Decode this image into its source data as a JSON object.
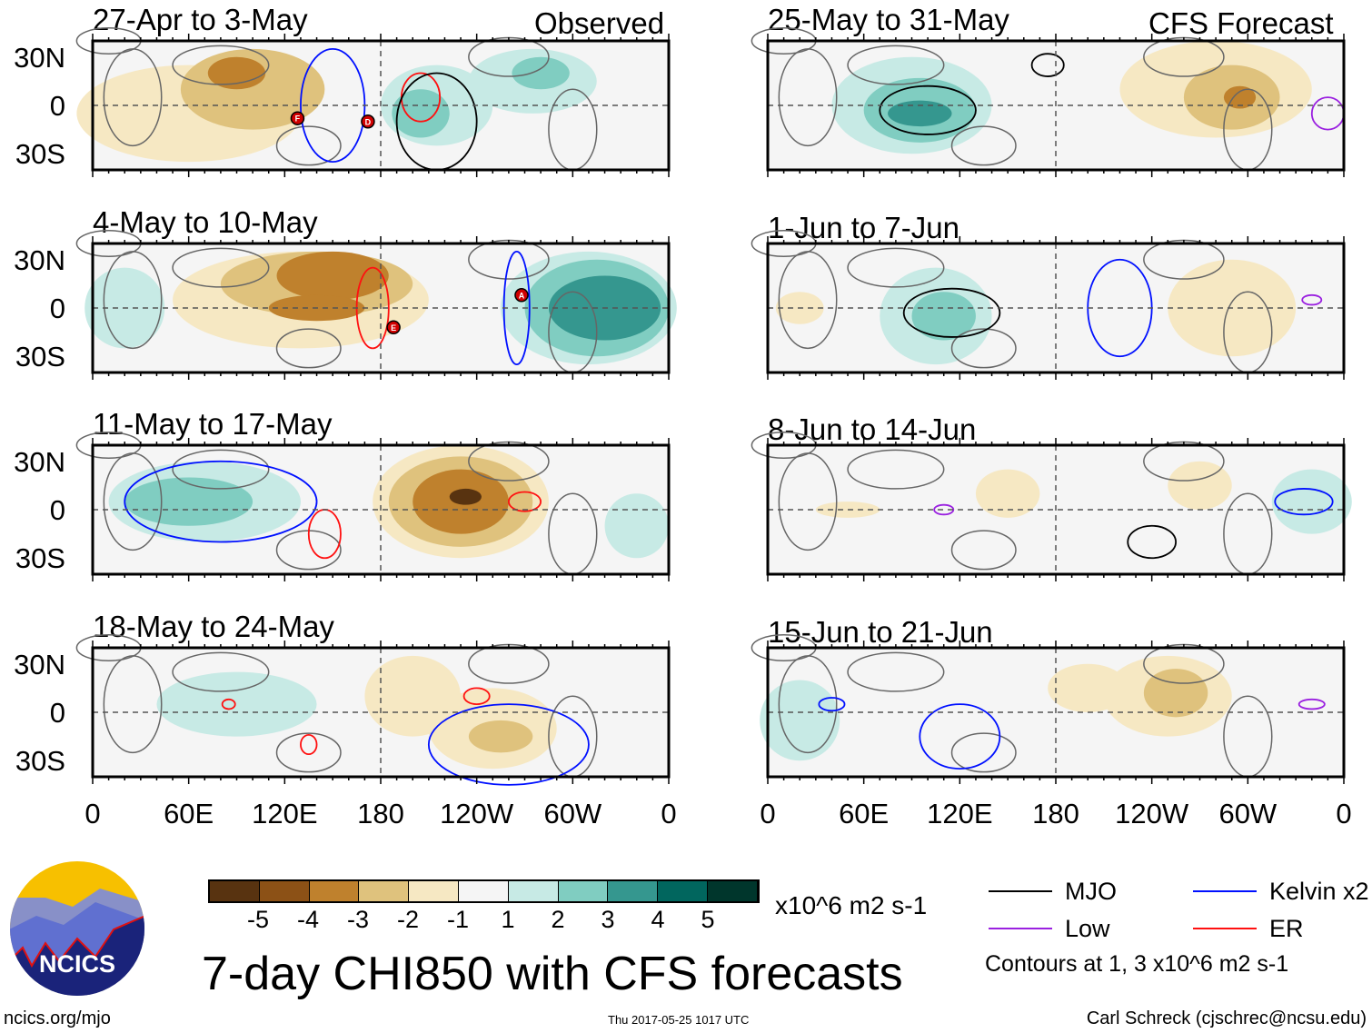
{
  "header": {
    "observed_label": "Observed",
    "forecast_label": "CFS Forecast"
  },
  "y_ticks": [
    "30N",
    "0",
    "30S"
  ],
  "x_ticks": [
    "0",
    "60E",
    "120E",
    "180",
    "120W",
    "60W",
    "0"
  ],
  "chart_data": {
    "type": "heatmap",
    "title": "7-day CHI850 with CFS forecasts",
    "units": "x10^6 m2 s-1",
    "lon_range": [
      0,
      360
    ],
    "lat_range": [
      -40,
      40
    ],
    "colorbar": {
      "ticks": [
        "-5",
        "-4",
        "-3",
        "-2",
        "-1",
        "1",
        "2",
        "3",
        "4",
        "5"
      ],
      "colors": [
        "#583310",
        "#8c5116",
        "#bf812d",
        "#dfc27d",
        "#f6e8c3",
        "#f5f5f5",
        "#c7eae5",
        "#80cdc1",
        "#35978f",
        "#01665e",
        "#00362c"
      ]
    },
    "legend": [
      {
        "label": "MJO",
        "color": "#000000"
      },
      {
        "label": "Kelvin x2",
        "color": "#0010ff"
      },
      {
        "label": "Low",
        "color": "#9a20e0"
      },
      {
        "label": "ER",
        "color": "#ff1010"
      }
    ],
    "contour_note": "Contours at 1, 3 x10^6 m2 s-1",
    "panels": [
      {
        "title": "27-Apr to 3-May",
        "col": 0,
        "row": 0,
        "regions": [
          [
            60,
            -5,
            70,
            30,
            -1
          ],
          [
            100,
            10,
            45,
            25,
            -2
          ],
          [
            90,
            20,
            18,
            10,
            -3
          ],
          [
            215,
            0,
            35,
            25,
            1
          ],
          [
            205,
            -5,
            18,
            15,
            2
          ],
          [
            275,
            15,
            40,
            20,
            1
          ],
          [
            280,
            20,
            18,
            10,
            2
          ]
        ],
        "contours": [
          [
            205,
            5,
            12,
            15,
            "#ff1010"
          ],
          [
            215,
            -10,
            25,
            30,
            "#000000"
          ],
          [
            150,
            0,
            20,
            35,
            "#0010ff"
          ]
        ],
        "storms": [
          [
            128,
            -8,
            "F"
          ],
          [
            172,
            -10,
            "D"
          ]
        ]
      },
      {
        "title": "4-May to 10-May",
        "col": 0,
        "row": 1,
        "regions": [
          [
            130,
            5,
            80,
            30,
            -1
          ],
          [
            140,
            15,
            60,
            20,
            -2
          ],
          [
            150,
            20,
            35,
            15,
            -3
          ],
          [
            140,
            0,
            30,
            8,
            -3
          ],
          [
            310,
            0,
            55,
            35,
            1
          ],
          [
            315,
            0,
            45,
            30,
            2
          ],
          [
            320,
            0,
            35,
            20,
            3
          ],
          [
            20,
            0,
            25,
            25,
            1
          ]
        ],
        "contours": [
          [
            175,
            0,
            10,
            25,
            "#ff1010"
          ],
          [
            265,
            0,
            8,
            35,
            "#0010ff"
          ]
        ],
        "storms": [
          [
            268,
            8,
            "A"
          ],
          [
            188,
            -12,
            "E"
          ]
        ]
      },
      {
        "title": "11-May to 17-May",
        "col": 0,
        "row": 2,
        "regions": [
          [
            70,
            5,
            60,
            25,
            1
          ],
          [
            60,
            5,
            40,
            15,
            2
          ],
          [
            230,
            5,
            55,
            35,
            -1
          ],
          [
            230,
            5,
            45,
            28,
            -2
          ],
          [
            230,
            5,
            30,
            20,
            -3
          ],
          [
            233,
            8,
            10,
            5,
            -5
          ],
          [
            340,
            -10,
            20,
            20,
            1
          ]
        ],
        "contours": [
          [
            145,
            -15,
            10,
            15,
            "#ff1010"
          ],
          [
            270,
            5,
            10,
            6,
            "#ff1010"
          ],
          [
            80,
            5,
            60,
            25,
            "#0010ff"
          ]
        ],
        "storms": []
      },
      {
        "title": "18-May to 24-May",
        "col": 0,
        "row": 3,
        "regions": [
          [
            90,
            5,
            50,
            20,
            1
          ],
          [
            200,
            10,
            30,
            25,
            -1
          ],
          [
            250,
            -10,
            40,
            25,
            -1
          ],
          [
            255,
            -15,
            20,
            10,
            -2
          ]
        ],
        "contours": [
          [
            85,
            5,
            4,
            3,
            "#ff1010"
          ],
          [
            135,
            -20,
            5,
            6,
            "#ff1010"
          ],
          [
            240,
            10,
            8,
            5,
            "#ff1010"
          ],
          [
            260,
            -20,
            50,
            25,
            "#0010ff"
          ]
        ],
        "storms": []
      },
      {
        "title": "25-May to 31-May",
        "col": 1,
        "row": 0,
        "regions": [
          [
            90,
            0,
            50,
            30,
            1
          ],
          [
            95,
            -3,
            35,
            20,
            2
          ],
          [
            95,
            -5,
            20,
            8,
            3
          ],
          [
            280,
            10,
            60,
            30,
            -1
          ],
          [
            290,
            5,
            30,
            20,
            -2
          ],
          [
            295,
            5,
            10,
            7,
            -3
          ]
        ],
        "contours": [
          [
            100,
            -3,
            30,
            15,
            "#000000"
          ],
          [
            175,
            25,
            10,
            7,
            "#000000"
          ],
          [
            350,
            -5,
            10,
            10,
            "#9a20e0"
          ]
        ],
        "storms": []
      },
      {
        "title": "1-Jun to 7-Jun",
        "col": 1,
        "row": 1,
        "regions": [
          [
            105,
            -5,
            35,
            30,
            1
          ],
          [
            110,
            -5,
            20,
            15,
            2
          ],
          [
            290,
            0,
            40,
            30,
            -1
          ],
          [
            20,
            0,
            15,
            10,
            -1
          ]
        ],
        "contours": [
          [
            115,
            -3,
            30,
            15,
            "#000000"
          ],
          [
            340,
            5,
            6,
            3,
            "#9a20e0"
          ],
          [
            220,
            0,
            20,
            30,
            "#0010ff"
          ]
        ],
        "storms": []
      },
      {
        "title": "8-Jun to 14-Jun",
        "col": 1,
        "row": 2,
        "regions": [
          [
            150,
            10,
            20,
            15,
            -1
          ],
          [
            270,
            15,
            20,
            15,
            -1
          ],
          [
            340,
            5,
            25,
            20,
            1
          ],
          [
            50,
            0,
            20,
            5,
            -1
          ]
        ],
        "contours": [
          [
            240,
            -20,
            15,
            10,
            "#000000"
          ],
          [
            335,
            5,
            18,
            8,
            "#0010ff"
          ],
          [
            110,
            0,
            6,
            3,
            "#9a20e0"
          ]
        ],
        "storms": []
      },
      {
        "title": "15-Jun to 21-Jun",
        "col": 1,
        "row": 3,
        "regions": [
          [
            250,
            10,
            40,
            25,
            -1
          ],
          [
            255,
            12,
            20,
            15,
            -2
          ],
          [
            20,
            -5,
            25,
            25,
            1
          ],
          [
            200,
            15,
            25,
            15,
            -1
          ]
        ],
        "contours": [
          [
            120,
            -15,
            25,
            20,
            "#0010ff"
          ],
          [
            40,
            5,
            8,
            4,
            "#0010ff"
          ],
          [
            340,
            5,
            8,
            3,
            "#9a20e0"
          ]
        ],
        "storms": []
      }
    ]
  },
  "logo": {
    "text": "NCICS"
  },
  "footer": {
    "left": "ncics.org/mjo",
    "center": "Thu 2017-05-25 1017 UTC",
    "right": "Carl Schreck (cjschrec@ncsu.edu)"
  }
}
